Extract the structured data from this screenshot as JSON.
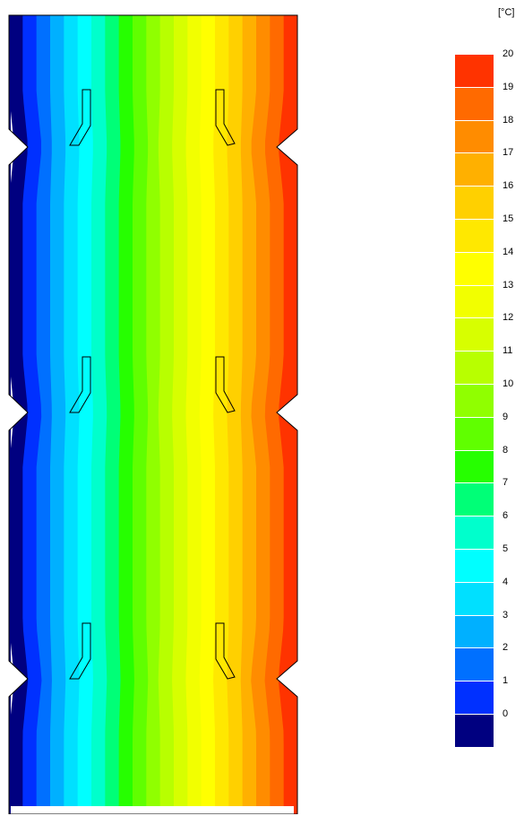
{
  "legend": {
    "unit": "[°C]",
    "ticks": [
      "20",
      "19",
      "18",
      "17",
      "16",
      "15",
      "14",
      "13",
      "12",
      "11",
      "10",
      "9",
      "8",
      "7",
      "6",
      "5",
      "4",
      "3",
      "2",
      "1",
      "0"
    ],
    "colors": [
      "#ff3300",
      "#ff6a00",
      "#ff8c00",
      "#ffb000",
      "#ffd000",
      "#ffe800",
      "#ffff00",
      "#f2ff00",
      "#d7ff00",
      "#b8ff00",
      "#90ff00",
      "#60ff00",
      "#26ff00",
      "#00ff77",
      "#00ffcc",
      "#00ffff",
      "#00e0ff",
      "#00b0ff",
      "#0070ff",
      "#0030ff",
      "#000080"
    ]
  },
  "chart_data": {
    "type": "heatmap",
    "unit": "[°C]",
    "range": [
      0,
      20
    ],
    "levels": [
      0,
      1,
      2,
      3,
      4,
      5,
      6,
      7,
      8,
      9,
      10,
      11,
      12,
      13,
      14,
      15,
      16,
      17,
      18,
      19,
      20
    ],
    "gradient_direction": "left-to-right",
    "min_value_side": "left",
    "max_value_side": "right"
  }
}
